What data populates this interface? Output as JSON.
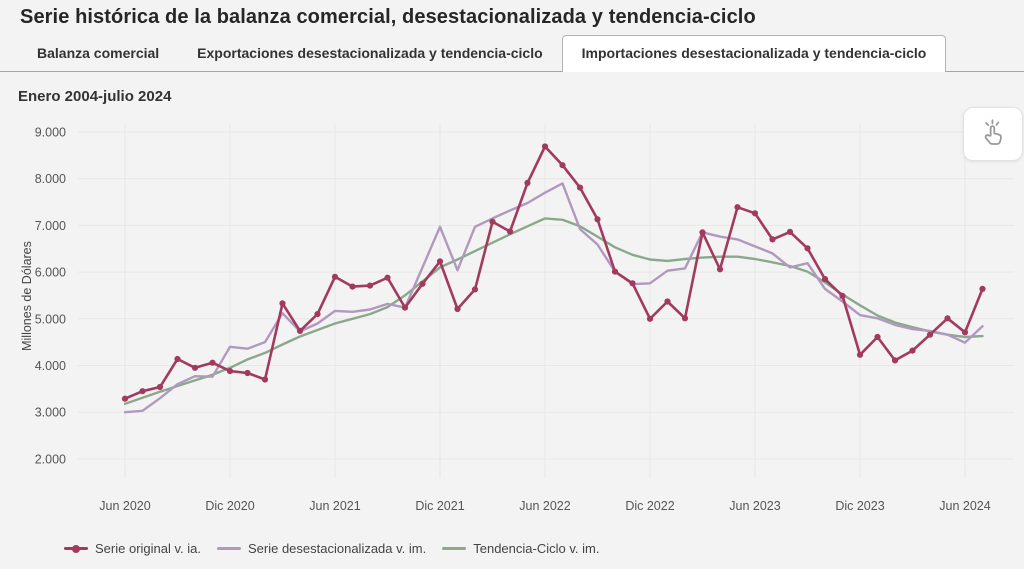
{
  "title": "Serie histórica de la balanza comercial, desestacionalizada y tendencia-ciclo",
  "subtitle": "Enero 2004-julio 2024",
  "tabs": [
    {
      "label": "Balanza comercial",
      "active": false
    },
    {
      "label": "Exportaciones desestacionalizada y tendencia-ciclo",
      "active": false
    },
    {
      "label": "Importaciones desestacionalizada y tendencia-ciclo",
      "active": true
    }
  ],
  "toolbar": {
    "pan_button_icon": "click-hand-icon"
  },
  "chart_data": {
    "type": "line",
    "ylabel": "Millones de Dólares",
    "grid": true,
    "legend_position": "bottom-left",
    "ylim": [
      1500,
      9500
    ],
    "y_ticks": [
      {
        "label": "9.000",
        "value": 9000
      },
      {
        "label": "8.000",
        "value": 8000
      },
      {
        "label": "7.000",
        "value": 7000
      },
      {
        "label": "6.000",
        "value": 6000
      },
      {
        "label": "5.000",
        "value": 5000
      },
      {
        "label": "4.000",
        "value": 4000
      },
      {
        "label": "3.000",
        "value": 3000
      },
      {
        "label": "2.000",
        "value": 2000
      }
    ],
    "x_ticks": [
      {
        "label": "Jun 2020",
        "index": 0
      },
      {
        "label": "Dic 2020",
        "index": 6
      },
      {
        "label": "Jun 2021",
        "index": 12
      },
      {
        "label": "Dic 2021",
        "index": 18
      },
      {
        "label": "Jun 2022",
        "index": 24
      },
      {
        "label": "Dic 2022",
        "index": 30
      },
      {
        "label": "Jun 2023",
        "index": 36
      },
      {
        "label": "Dic 2023",
        "index": 42
      },
      {
        "label": "Jun 2024",
        "index": 48
      }
    ],
    "x_start": "Jun 2020",
    "x_end": "Jul 2024",
    "x_step": "1 month",
    "series": [
      {
        "name": "Serie original v. ia.",
        "color": "#a23a5e",
        "marker": true,
        "values": [
          3290,
          3450,
          3540,
          4140,
          3950,
          4060,
          3880,
          3840,
          3700,
          5330,
          4740,
          5100,
          5900,
          5690,
          5710,
          5880,
          5240,
          5750,
          6230,
          5210,
          5630,
          7080,
          6870,
          7910,
          8690,
          8290,
          7810,
          7130,
          6010,
          5760,
          5000,
          5370,
          5010,
          6850,
          6060,
          7390,
          7260,
          6700,
          6860,
          6510,
          5850,
          5490,
          4230,
          4610,
          4110,
          4320,
          4660,
          5010,
          4710,
          5640
        ]
      },
      {
        "name": "Serie desestacionalizada v. im.",
        "color": "#b199bd",
        "marker": false,
        "values": [
          3000,
          3030,
          3300,
          3600,
          3770,
          3760,
          4400,
          4360,
          4500,
          5120,
          4730,
          4900,
          5170,
          5150,
          5200,
          5320,
          5240,
          6100,
          6970,
          6040,
          6970,
          7150,
          7320,
          7480,
          7700,
          7900,
          6920,
          6590,
          6010,
          5740,
          5760,
          6030,
          6080,
          6850,
          6760,
          6700,
          6550,
          6400,
          6100,
          6190,
          5640,
          5370,
          5080,
          5010,
          4870,
          4780,
          4740,
          4660,
          4490,
          4840
        ]
      },
      {
        "name": "Tendencia-Ciclo v. im.",
        "color": "#8aa98c",
        "marker": false,
        "values": [
          3180,
          3310,
          3440,
          3560,
          3680,
          3800,
          3950,
          4130,
          4270,
          4450,
          4620,
          4760,
          4900,
          5000,
          5100,
          5250,
          5500,
          5800,
          6100,
          6270,
          6450,
          6630,
          6810,
          6980,
          7150,
          7120,
          6980,
          6760,
          6530,
          6370,
          6270,
          6240,
          6280,
          6310,
          6330,
          6330,
          6280,
          6210,
          6130,
          6010,
          5780,
          5520,
          5290,
          5070,
          4920,
          4820,
          4730,
          4660,
          4610,
          4630
        ]
      }
    ]
  }
}
